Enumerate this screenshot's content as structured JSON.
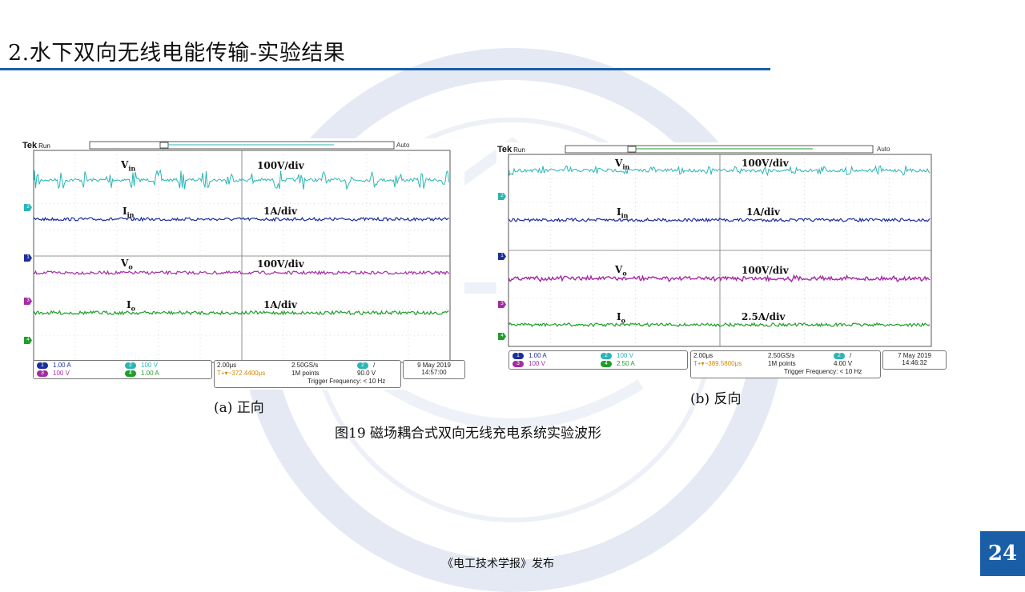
{
  "slide": {
    "title": "2.水下双向无线电能传输-实验结果",
    "figure_caption": "图19 磁场耦合式双向无线充电系统实验波形",
    "footer": "《电工技术学报》发布",
    "page_number": "24",
    "accent_color": "#1a5ea8"
  },
  "scope_a": {
    "caption": "(a) 正向",
    "brand": "Tek",
    "run_state": "Run",
    "trigger_mode": "Auto",
    "labels": {
      "vin_main": "V",
      "vin_sub": "in",
      "vin_scale": "100V/div",
      "iin_main": "I",
      "iin_sub": "in",
      "iin_scale": "1A/div",
      "vo_main": "V",
      "vo_sub": "o",
      "vo_scale": "100V/div",
      "io_main": "I",
      "io_sub": "o",
      "io_scale": "1A/div"
    },
    "channels": {
      "ch1_num": "1",
      "ch1_val": "1.00 A",
      "ch2_num": "2",
      "ch2_val": "100 V",
      "ch3_num": "3",
      "ch3_val": "100 V",
      "ch4_num": "4",
      "ch4_val": "1.00 A"
    },
    "timebase": "2.00μs",
    "sample_rate": "2.50GS/s",
    "trigger_ch": "2",
    "trigger_slope": "/",
    "trigger_offset": "T+▾~372.4400μs",
    "record_length": "1M points",
    "trigger_level": "90.0 V",
    "trigger_freq": "Trigger Frequency: < 10 Hz",
    "date": "9 May 2019",
    "time": "14:57:00"
  },
  "scope_b": {
    "caption": "(b) 反向",
    "brand": "Tek",
    "run_state": "Run",
    "trigger_mode": "Auto",
    "labels": {
      "vin_main": "V",
      "vin_sub": "in",
      "vin_scale": "100V/div",
      "iin_main": "I",
      "iin_sub": "in",
      "iin_scale": "1A/div",
      "vo_main": "V",
      "vo_sub": "o",
      "vo_scale": "100V/div",
      "io_main": "I",
      "io_sub": "o",
      "io_scale": "2.5A/div"
    },
    "channels": {
      "ch1_num": "1",
      "ch1_val": "1.00 A",
      "ch2_num": "2",
      "ch2_val": "100 V",
      "ch3_num": "3",
      "ch3_val": "100 V",
      "ch4_num": "4",
      "ch4_val": "2.50 A"
    },
    "timebase": "2.00μs",
    "sample_rate": "2.50GS/s",
    "trigger_ch": "2",
    "trigger_slope": "/",
    "trigger_offset": "T+▾~389.5800μs",
    "record_length": "1M points",
    "trigger_level": "4.00 V",
    "trigger_freq": "Trigger Frequency: < 10 Hz",
    "date": "7 May 2019",
    "time": "14:46:32"
  },
  "trace_colors": {
    "vin": "#2bb5b5",
    "iin": "#1a2f9e",
    "vo": "#a52aa5",
    "io": "#1f9e2a"
  }
}
